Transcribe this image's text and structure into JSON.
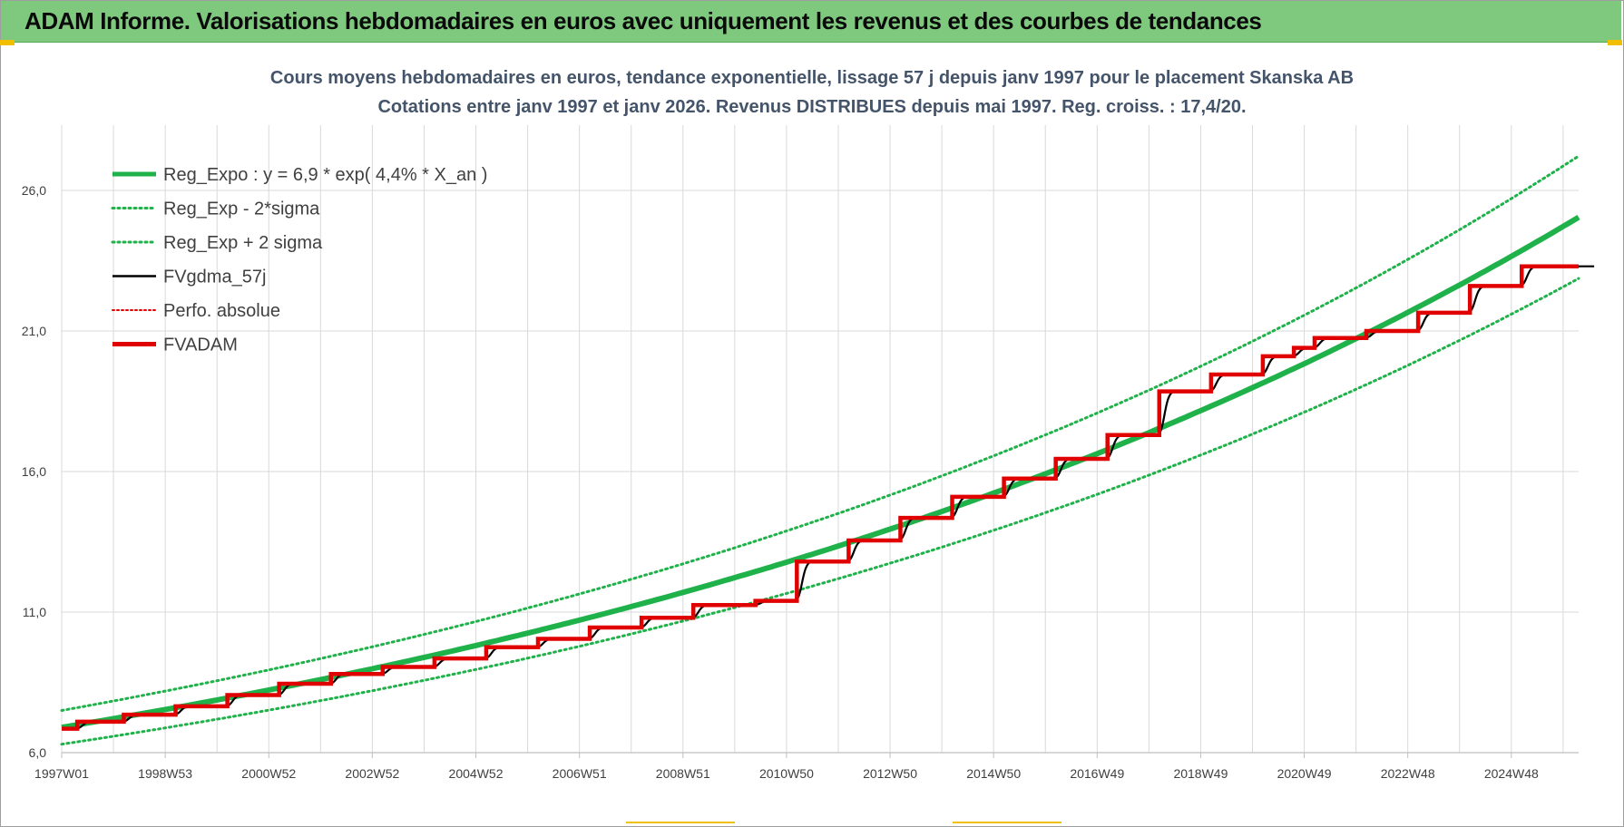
{
  "header": {
    "title": "ADAM Informe. Valorisations hebdomadaires en euros avec uniquement les revenus et des courbes de tendances"
  },
  "colors": {
    "header_bg": "#7fc97f",
    "green": "#1fb14a",
    "red": "#e00000",
    "black": "#000000",
    "grid": "#d9d9d9"
  },
  "chart_data": {
    "type": "line",
    "title": "Cours moyens hebdomadaires en euros, tendance exponentielle, lissage 57 j depuis janv 1997 pour le placement Skanska AB",
    "subtitle": "Cotations entre janv 1997 et janv 2026. Revenus DISTRIBUES depuis mai 1997.  Reg. croiss. : 17,4/20.",
    "xlabel": "",
    "ylabel": "",
    "ylim": [
      6.0,
      28.0
    ],
    "yticks": [
      "6,0",
      "11,0",
      "16,0",
      "21,0",
      "26,0"
    ],
    "xtick_labels": [
      "1997W01",
      "1998W53",
      "2000W52",
      "2002W52",
      "2004W52",
      "2006W51",
      "2008W51",
      "2010W50",
      "2012W50",
      "2014W50",
      "2016W49",
      "2018W49",
      "2020W49",
      "2022W48",
      "2024W48"
    ],
    "xrange_years": [
      1997.0,
      2026.3
    ],
    "grid": true,
    "legend_position": "top-left",
    "series": [
      {
        "name": "Reg_Expo : y = 6,9 * exp( 4,4% *  X_an )",
        "style": "solid-green-thick",
        "model": {
          "a": 6.9,
          "rate": 0.044,
          "start_year": 1997.0
        }
      },
      {
        "name": "Reg_Exp - 2*sigma",
        "style": "dotted-green",
        "model": {
          "a": 6.3,
          "rate": 0.044,
          "start_year": 1997.0
        }
      },
      {
        "name": "Reg_Exp + 2 sigma",
        "style": "dotted-green",
        "model": {
          "a": 7.5,
          "rate": 0.044,
          "start_year": 1997.0
        }
      },
      {
        "name": "FVgdma_57j",
        "style": "solid-black"
      },
      {
        "name": "Perfo. absolue",
        "style": "dotted-red"
      },
      {
        "name": "FVADAM",
        "style": "solid-red-thick",
        "steps": [
          [
            1997.0,
            6.85
          ],
          [
            1997.3,
            7.1
          ],
          [
            1998.2,
            7.35
          ],
          [
            1999.2,
            7.65
          ],
          [
            2000.2,
            8.05
          ],
          [
            2001.2,
            8.45
          ],
          [
            2002.2,
            8.8
          ],
          [
            2003.2,
            9.05
          ],
          [
            2004.2,
            9.35
          ],
          [
            2005.2,
            9.75
          ],
          [
            2006.2,
            10.05
          ],
          [
            2007.2,
            10.45
          ],
          [
            2008.2,
            10.8
          ],
          [
            2009.2,
            11.25
          ],
          [
            2010.4,
            11.4
          ],
          [
            2011.2,
            12.8
          ],
          [
            2012.2,
            13.55
          ],
          [
            2013.2,
            14.35
          ],
          [
            2014.2,
            15.1
          ],
          [
            2015.2,
            15.75
          ],
          [
            2016.2,
            16.45
          ],
          [
            2017.2,
            17.3
          ],
          [
            2018.2,
            18.85
          ],
          [
            2019.2,
            19.45
          ],
          [
            2020.2,
            20.1
          ],
          [
            2020.8,
            20.4
          ],
          [
            2021.2,
            20.75
          ],
          [
            2022.2,
            21.0
          ],
          [
            2023.2,
            21.65
          ],
          [
            2024.2,
            22.6
          ],
          [
            2025.2,
            23.3
          ],
          [
            2026.3,
            23.3
          ]
        ]
      }
    ]
  }
}
